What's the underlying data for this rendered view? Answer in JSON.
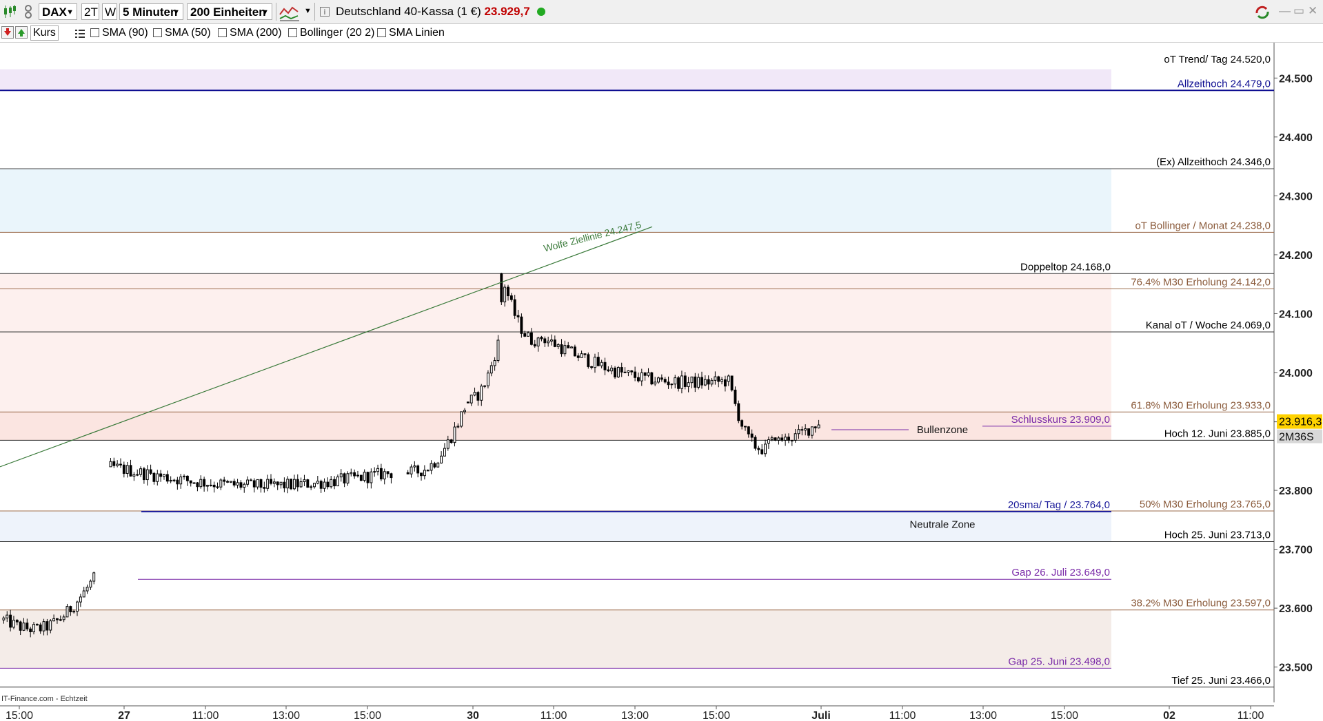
{
  "toolbar": {
    "symbol": "DAX",
    "range_2t": "2T",
    "range_w": "W",
    "interval": "5 Minuten",
    "units": "200 Einheiten",
    "instrument": "Deutschland 40-Kassa (1 €)",
    "price": "23.929,7",
    "price_color": "#c00000",
    "live_color": "#22aa22"
  },
  "toolbar2": {
    "kurs_label": "Kurs",
    "indicators": [
      "SMA (90)",
      "SMA (50)",
      "SMA (200)",
      "Bollinger (20 2)",
      "SMA Linien"
    ]
  },
  "chart_data": {
    "type": "candlestick",
    "ylim": [
      23440,
      24560
    ],
    "y_ticks": [
      {
        "value": 24500,
        "label": "24.500"
      },
      {
        "value": 24400,
        "label": "24.400"
      },
      {
        "value": 24300,
        "label": "24.300"
      },
      {
        "value": 24200,
        "label": "24.200"
      },
      {
        "value": 24100,
        "label": "24.100"
      },
      {
        "value": 24000,
        "label": "24.000"
      },
      {
        "value": 23800,
        "label": "23.800"
      },
      {
        "value": 23700,
        "label": "23.700"
      },
      {
        "value": 23600,
        "label": "23.600"
      },
      {
        "value": 23500,
        "label": "23.500"
      }
    ],
    "x_ticks": [
      {
        "label": "15:00",
        "bold": false
      },
      {
        "label": "27",
        "bold": true
      },
      {
        "label": "11:00",
        "bold": false
      },
      {
        "label": "13:00",
        "bold": false
      },
      {
        "label": "15:00",
        "bold": false
      },
      {
        "label": "30",
        "bold": true
      },
      {
        "label": "11:00",
        "bold": false
      },
      {
        "label": "13:00",
        "bold": false
      },
      {
        "label": "15:00",
        "bold": false
      },
      {
        "label": "Juli",
        "bold": true
      },
      {
        "label": "11:00",
        "bold": false
      },
      {
        "label": "13:00",
        "bold": false
      },
      {
        "label": "15:00",
        "bold": false
      },
      {
        "label": "02",
        "bold": true
      },
      {
        "label": "11:00",
        "bold": false
      }
    ],
    "current_price": {
      "label": "23.916,3",
      "value": 23916.3
    },
    "countdown": "2M36S",
    "footer": "IT-Finance.com - Echtzeit",
    "zones": [
      {
        "from": 24479,
        "to": 24515,
        "color": "#f1e8f8"
      },
      {
        "from": 24238,
        "to": 24346,
        "color": "#eaf5fb"
      },
      {
        "from": 23933,
        "to": 24168,
        "color": "#fdf0ee"
      },
      {
        "from": 23885,
        "to": 23933,
        "color": "#fbe5e1"
      },
      {
        "from": 23713,
        "to": 23764,
        "color": "#eef3fb"
      },
      {
        "from": 23498,
        "to": 23597,
        "color": "#f4ece8"
      }
    ],
    "levels": [
      {
        "value": 24520,
        "label": "oT Trend/ Tag 24.520,0",
        "color": "#333333",
        "label_color": "#000000",
        "draw_line": false,
        "pos": "right"
      },
      {
        "value": 24479,
        "label": "Allzeithoch 24.479,0",
        "color": "#0a0a90",
        "label_color": "#0a0a90",
        "draw_line": true,
        "pos": "right"
      },
      {
        "value": 24346,
        "label": "(Ex) Allzeithoch 24.346,0",
        "color": "#444444",
        "label_color": "#000000",
        "draw_line": true,
        "pos": "right"
      },
      {
        "value": 24238,
        "label": "oT Bollinger / Monat 24.238,0",
        "color": "#9a6a4a",
        "label_color": "#8a5a3a",
        "draw_line": true,
        "pos": "right"
      },
      {
        "value": 24168,
        "label": "Doppeltop 24.168,0",
        "color": "#333333",
        "label_color": "#000000",
        "draw_line": true,
        "pos": "mid"
      },
      {
        "value": 24142,
        "label": "76.4%  M30 Erholung 24.142,0",
        "color": "#9a6a4a",
        "label_color": "#8a5a3a",
        "draw_line": true,
        "pos": "right"
      },
      {
        "value": 24069,
        "label": "Kanal oT / Woche 24.069,0",
        "color": "#333333",
        "label_color": "#000000",
        "draw_line": true,
        "pos": "right"
      },
      {
        "value": 23933,
        "label": "61.8%  M30 Erholung 23.933,0",
        "color": "#9a6a4a",
        "label_color": "#8a5a3a",
        "draw_line": true,
        "pos": "right"
      },
      {
        "value": 23885,
        "label": "Hoch 12. Juni 23.885,0",
        "color": "#333333",
        "label_color": "#000000",
        "draw_line": true,
        "pos": "right"
      },
      {
        "value": 23765,
        "label": "50%  M30 Erholung 23.765,0",
        "color": "#9a6a4a",
        "label_color": "#8a5a3a",
        "draw_line": true,
        "pos": "right"
      },
      {
        "value": 23713,
        "label": "Hoch 25. Juni 23.713,0",
        "color": "#333333",
        "label_color": "#000000",
        "draw_line": true,
        "pos": "right"
      },
      {
        "value": 23597,
        "label": "38.2%  M30 Erholung 23.597,0",
        "color": "#9a6a4a",
        "label_color": "#8a5a3a",
        "draw_line": true,
        "pos": "right"
      },
      {
        "value": 23466,
        "label": "Tief 25. Juni  23.466,0",
        "color": "#333333",
        "label_color": "#000000",
        "draw_line": true,
        "pos": "right"
      }
    ],
    "mid_levels": [
      {
        "value": 23909,
        "label": "Schlusskurs 23.909,0",
        "color": "#7a2aa8",
        "dashed": false
      },
      {
        "value": 23764,
        "label": "20sma/ Tag /   23.764,0",
        "color": "#1a1a9a",
        "dashed": false
      },
      {
        "value": 23649,
        "label": "Gap 26. Juli  23.649,0",
        "color": "#7a2aa8",
        "dashed": false
      },
      {
        "value": 23498,
        "label": "Gap  25. Juni 23.498,0",
        "color": "#7a2aa8",
        "dashed": false
      }
    ],
    "zone_labels": [
      {
        "value": 23903,
        "label": "Bullenzone"
      },
      {
        "value": 23742,
        "label": "Neutrale Zone"
      }
    ],
    "trendline": {
      "label": "Wolfe Ziellinie   24.247,5",
      "color": "#3a7a3a"
    },
    "segments": [
      {
        "n": 28,
        "start": 23580,
        "end": 23650,
        "lo": 23520,
        "hi": 23665,
        "trough": 23540
      },
      {
        "n": 85,
        "start": 23840,
        "end": 23830,
        "lo": 23785,
        "hi": 23890,
        "trough": 23790
      },
      {
        "n": 18,
        "start": 23830,
        "end": 23940,
        "lo": 23820,
        "hi": 23990,
        "trough": 23830
      },
      {
        "n": 10,
        "start": 23950,
        "end": 24050,
        "lo": 23940,
        "hi": 24060,
        "trough": 23960
      },
      {
        "n": 12,
        "start": 24168,
        "end": 24050,
        "lo": 24040,
        "hi": 24168,
        "trough": 24060
      },
      {
        "n": 56,
        "start": 24060,
        "end": 23985,
        "lo": 23960,
        "hi": 24090,
        "trough": 23975
      },
      {
        "n": 12,
        "start": 23985,
        "end": 23870,
        "lo": 23855,
        "hi": 24000,
        "trough": 23870
      },
      {
        "n": 16,
        "start": 23880,
        "end": 23916,
        "lo": 23880,
        "hi": 23955,
        "trough": 23885
      }
    ]
  }
}
